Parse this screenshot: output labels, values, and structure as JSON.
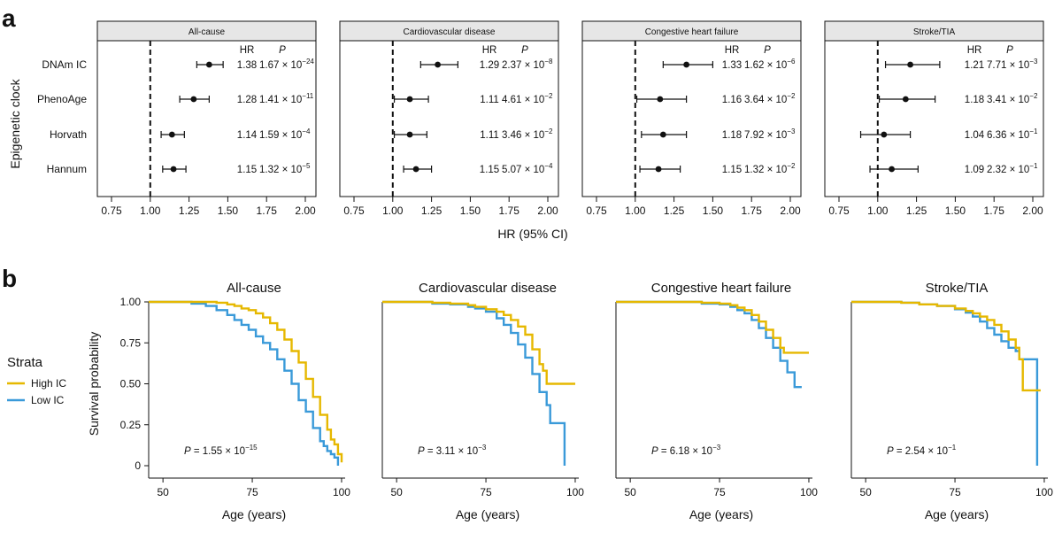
{
  "figure": {
    "panel_a_label": "a",
    "panel_b_label": "b"
  },
  "colors": {
    "high_ic": "#e6b800",
    "low_ic": "#3a9ad9",
    "strip_fill": "#e6e6e6",
    "point": "#111111"
  },
  "chart_data": [
    {
      "id": "forest",
      "type": "scatter",
      "subtype": "forest-plot",
      "title": "",
      "ylabel": "Epigenetic clock",
      "xlabel": "HR (95% CI)",
      "xlim": [
        0.75,
        2.0
      ],
      "xticks": [
        0.75,
        1.0,
        1.25,
        1.5,
        1.75,
        2.0
      ],
      "xtick_labels": [
        "0.75",
        "1.00",
        "1.25",
        "1.50",
        "1.75",
        "2.00"
      ],
      "reference_line": 1.0,
      "rows": [
        "DNAm IC",
        "PhenoAge",
        "Horvath",
        "Hannum"
      ],
      "column_headers": {
        "hr": "HR",
        "p": "P"
      },
      "panels": [
        {
          "title": "All-cause",
          "entries": [
            {
              "hr": 1.38,
              "lo": 1.3,
              "hi": 1.47,
              "hr_label": "1.38",
              "p_mant": "1.67",
              "p_exp": "−24"
            },
            {
              "hr": 1.28,
              "lo": 1.19,
              "hi": 1.38,
              "hr_label": "1.28",
              "p_mant": "1.41",
              "p_exp": "−11"
            },
            {
              "hr": 1.14,
              "lo": 1.07,
              "hi": 1.22,
              "hr_label": "1.14",
              "p_mant": "1.59",
              "p_exp": "−4"
            },
            {
              "hr": 1.15,
              "lo": 1.08,
              "hi": 1.23,
              "hr_label": "1.15",
              "p_mant": "1.32",
              "p_exp": "−5"
            }
          ]
        },
        {
          "title": "Cardiovascular disease",
          "entries": [
            {
              "hr": 1.29,
              "lo": 1.18,
              "hi": 1.42,
              "hr_label": "1.29",
              "p_mant": "2.37",
              "p_exp": "−8"
            },
            {
              "hr": 1.11,
              "lo": 1.01,
              "hi": 1.23,
              "hr_label": "1.11",
              "p_mant": "4.61",
              "p_exp": "−2"
            },
            {
              "hr": 1.11,
              "lo": 1.01,
              "hi": 1.22,
              "hr_label": "1.11",
              "p_mant": "3.46",
              "p_exp": "−2"
            },
            {
              "hr": 1.15,
              "lo": 1.07,
              "hi": 1.25,
              "hr_label": "1.15",
              "p_mant": "5.07",
              "p_exp": "−4"
            }
          ]
        },
        {
          "title": "Congestive heart failure",
          "entries": [
            {
              "hr": 1.33,
              "lo": 1.18,
              "hi": 1.5,
              "hr_label": "1.33",
              "p_mant": "1.62",
              "p_exp": "−6"
            },
            {
              "hr": 1.16,
              "lo": 1.01,
              "hi": 1.33,
              "hr_label": "1.16",
              "p_mant": "3.64",
              "p_exp": "−2"
            },
            {
              "hr": 1.18,
              "lo": 1.04,
              "hi": 1.33,
              "hr_label": "1.18",
              "p_mant": "7.92",
              "p_exp": "−3"
            },
            {
              "hr": 1.15,
              "lo": 1.03,
              "hi": 1.29,
              "hr_label": "1.15",
              "p_mant": "1.32",
              "p_exp": "−2"
            }
          ]
        },
        {
          "title": "Stroke/TIA",
          "entries": [
            {
              "hr": 1.21,
              "lo": 1.05,
              "hi": 1.4,
              "hr_label": "1.21",
              "p_mant": "7.71",
              "p_exp": "−3"
            },
            {
              "hr": 1.18,
              "lo": 1.01,
              "hi": 1.37,
              "hr_label": "1.18",
              "p_mant": "3.41",
              "p_exp": "−2"
            },
            {
              "hr": 1.04,
              "lo": 0.89,
              "hi": 1.21,
              "hr_label": "1.04",
              "p_mant": "6.36",
              "p_exp": "−1"
            },
            {
              "hr": 1.09,
              "lo": 0.95,
              "hi": 1.26,
              "hr_label": "1.09",
              "p_mant": "2.32",
              "p_exp": "−1"
            }
          ]
        }
      ]
    },
    {
      "id": "kaplan-meier",
      "type": "line",
      "subtype": "survival-step",
      "xlabel": "Age (years)",
      "ylabel": "Survival probability",
      "xlim": [
        46,
        101
      ],
      "ylim": [
        0,
        1.0
      ],
      "xticks": [
        50,
        75,
        100
      ],
      "xtick_labels": [
        "50",
        "75",
        "100"
      ],
      "yticks": [
        0,
        0.25,
        0.5,
        0.75,
        1.0
      ],
      "ytick_labels": [
        "0",
        "0.25",
        "0.50",
        "0.75",
        "1.00"
      ],
      "legend": {
        "title": "Strata",
        "position": "left",
        "entries": [
          {
            "name": "High IC",
            "color_key": "high_ic"
          },
          {
            "name": "Low IC",
            "color_key": "low_ic"
          }
        ]
      },
      "panels": [
        {
          "title": "All-cause",
          "p_mant": "1.55",
          "p_exp": "−15",
          "series": [
            {
              "name": "High IC",
              "x": [
                46,
                60,
                65,
                68,
                70,
                72,
                74,
                76,
                78,
                80,
                82,
                84,
                86,
                88,
                90,
                92,
                94,
                96,
                97,
                98,
                99,
                100
              ],
              "y": [
                1.0,
                1.0,
                0.995,
                0.985,
                0.975,
                0.96,
                0.95,
                0.93,
                0.905,
                0.87,
                0.83,
                0.77,
                0.7,
                0.63,
                0.53,
                0.42,
                0.31,
                0.22,
                0.16,
                0.13,
                0.07,
                0.02
              ]
            },
            {
              "name": "Low IC",
              "x": [
                46,
                55,
                58,
                62,
                65,
                68,
                70,
                72,
                74,
                76,
                78,
                80,
                82,
                84,
                86,
                88,
                90,
                92,
                94,
                95,
                96,
                97,
                98,
                99
              ],
              "y": [
                1.0,
                1.0,
                0.99,
                0.975,
                0.95,
                0.92,
                0.89,
                0.86,
                0.83,
                0.79,
                0.75,
                0.71,
                0.65,
                0.58,
                0.5,
                0.4,
                0.33,
                0.23,
                0.15,
                0.12,
                0.09,
                0.07,
                0.05,
                0.0
              ]
            }
          ]
        },
        {
          "title": "Cardiovascular disease",
          "p_mant": "3.11",
          "p_exp": "−3",
          "series": [
            {
              "name": "High IC",
              "x": [
                46,
                60,
                65,
                70,
                72,
                75,
                78,
                80,
                82,
                84,
                86,
                88,
                90,
                91,
                92,
                100
              ],
              "y": [
                1.0,
                0.995,
                0.99,
                0.98,
                0.97,
                0.955,
                0.94,
                0.92,
                0.89,
                0.85,
                0.8,
                0.71,
                0.62,
                0.58,
                0.5,
                0.5
              ]
            },
            {
              "name": "Low IC",
              "x": [
                46,
                60,
                65,
                70,
                72,
                75,
                78,
                80,
                82,
                84,
                86,
                88,
                90,
                92,
                93,
                96,
                97
              ],
              "y": [
                1.0,
                0.99,
                0.985,
                0.97,
                0.96,
                0.94,
                0.9,
                0.86,
                0.81,
                0.74,
                0.66,
                0.56,
                0.45,
                0.37,
                0.26,
                0.26,
                0.0
              ]
            }
          ]
        },
        {
          "title": "Congestive heart failure",
          "p_mant": "6.18",
          "p_exp": "−3",
          "series": [
            {
              "name": "High IC",
              "x": [
                46,
                60,
                70,
                75,
                78,
                80,
                82,
                84,
                86,
                88,
                90,
                92,
                93,
                100
              ],
              "y": [
                1.0,
                1.0,
                0.995,
                0.99,
                0.98,
                0.965,
                0.95,
                0.92,
                0.88,
                0.83,
                0.78,
                0.72,
                0.69,
                0.69
              ]
            },
            {
              "name": "Low IC",
              "x": [
                46,
                60,
                70,
                75,
                78,
                80,
                82,
                84,
                86,
                88,
                90,
                92,
                94,
                96,
                98
              ],
              "y": [
                1.0,
                1.0,
                0.99,
                0.985,
                0.97,
                0.95,
                0.93,
                0.89,
                0.84,
                0.78,
                0.72,
                0.64,
                0.57,
                0.48,
                0.48
              ]
            }
          ]
        },
        {
          "title": "Stroke/TIA",
          "p_mant": "2.54",
          "p_exp": "−1",
          "series": [
            {
              "name": "High IC",
              "x": [
                46,
                60,
                65,
                70,
                75,
                78,
                80,
                82,
                84,
                86,
                88,
                90,
                92,
                93,
                94,
                99
              ],
              "y": [
                1.0,
                0.995,
                0.985,
                0.975,
                0.96,
                0.945,
                0.93,
                0.91,
                0.89,
                0.86,
                0.82,
                0.77,
                0.72,
                0.65,
                0.46,
                0.46
              ]
            },
            {
              "name": "Low IC",
              "x": [
                46,
                60,
                65,
                70,
                75,
                78,
                80,
                82,
                84,
                86,
                88,
                90,
                92,
                93,
                94,
                97,
                98
              ],
              "y": [
                1.0,
                0.995,
                0.985,
                0.975,
                0.955,
                0.935,
                0.91,
                0.88,
                0.84,
                0.8,
                0.76,
                0.72,
                0.7,
                0.65,
                0.65,
                0.65,
                0.0
              ]
            }
          ]
        }
      ]
    }
  ]
}
